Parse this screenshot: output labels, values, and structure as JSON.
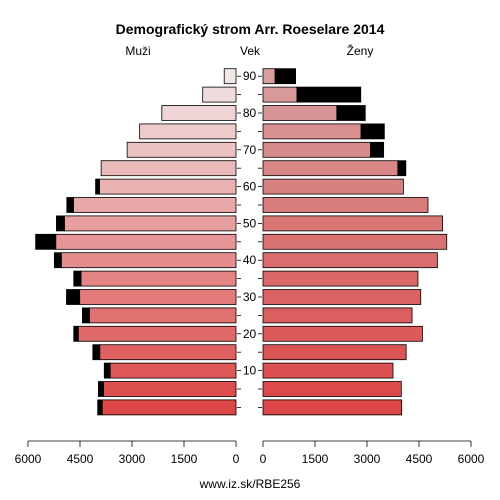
{
  "chart_data": {
    "type": "bar",
    "orientation": "horizontal-pyramid",
    "title": "Demografický strom Arr. Roeselare 2014",
    "left_label": "Muži",
    "center_label": "Vek",
    "right_label": "Ženy",
    "footer": "www.iz.sk/RBE256",
    "x_ticks_left": [
      "6000",
      "4500",
      "3000",
      "1500",
      "0"
    ],
    "x_ticks_right": [
      "0",
      "1500",
      "3000",
      "4500",
      "6000"
    ],
    "tick_values": [
      6000,
      4500,
      3000,
      1500,
      0
    ],
    "xlim": [
      0,
      6000
    ],
    "age_ticks": [
      "10",
      "20",
      "30",
      "40",
      "50",
      "60",
      "70",
      "80",
      "90"
    ],
    "age_groups": [
      "0-4",
      "5-9",
      "10-14",
      "15-19",
      "20-24",
      "25-29",
      "30-34",
      "35-39",
      "40-44",
      "45-49",
      "50-54",
      "55-59",
      "60-64",
      "65-69",
      "70-74",
      "75-79",
      "80-84",
      "85-89",
      "90+"
    ],
    "series": [
      {
        "name": "Muži",
        "values": [
          3990,
          3970,
          3800,
          4130,
          4680,
          4430,
          4890,
          4680,
          5240,
          5780,
          5180,
          4880,
          4050,
          3890,
          3140,
          2780,
          2140,
          960,
          340
        ],
        "surplus": [
          130,
          150,
          170,
          200,
          130,
          200,
          380,
          210,
          200,
          580,
          230,
          190,
          110,
          0,
          0,
          0,
          0,
          0,
          0
        ]
      },
      {
        "name": "Ženy",
        "values": [
          4000,
          3990,
          3750,
          4130,
          4600,
          4300,
          4550,
          4470,
          5030,
          5300,
          5180,
          4760,
          4050,
          4120,
          3480,
          3500,
          2950,
          2820,
          940
        ],
        "surplus": [
          0,
          0,
          0,
          0,
          0,
          0,
          0,
          0,
          0,
          0,
          0,
          0,
          0,
          230,
          380,
          670,
          820,
          1840,
          590
        ]
      }
    ],
    "colors": {
      "male_young": "#dc4646",
      "male_old": "#f0e6e6",
      "female_young": "#dc4646",
      "female_old": "#f0e6e6",
      "surplus": "#000000",
      "stroke": "#000000"
    }
  }
}
